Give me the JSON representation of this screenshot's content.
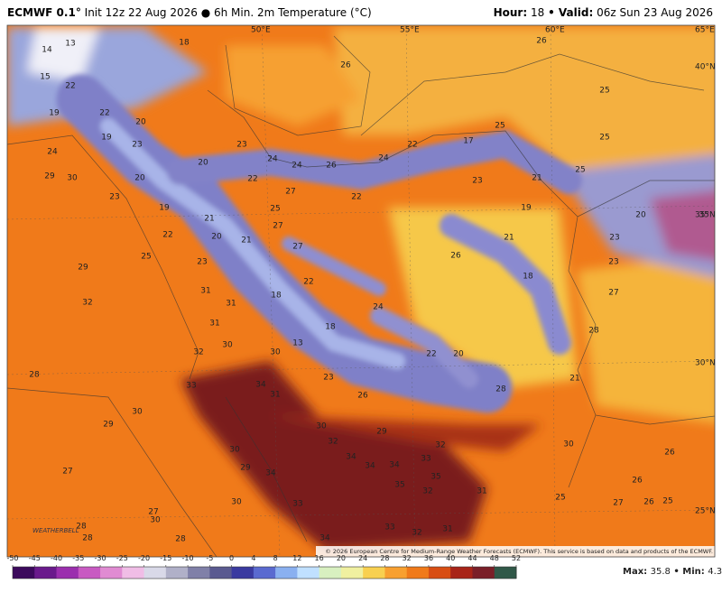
{
  "header": {
    "model": "ECMWF 0.1°",
    "init": "Init 12z 22 Aug 2026 ● 6h Min. 2m Temperature (°C)",
    "hour_label": "Hour:",
    "hour": "18",
    "valid_label": "• Valid:",
    "valid": "06z Sun 23 Aug 2026"
  },
  "map": {
    "grid_labels": [
      "50°E",
      "55°E",
      "60°E",
      "65°E",
      "40°N",
      "35°N",
      "30°N",
      "25°N"
    ],
    "temperatures": [
      14,
      15,
      13,
      18,
      22,
      19,
      22,
      20,
      19,
      23,
      24,
      29,
      30,
      20,
      20,
      22,
      23,
      19,
      21,
      20,
      22,
      21,
      25,
      23,
      29,
      32,
      31,
      31,
      31,
      18,
      22,
      27,
      27,
      25,
      27,
      22,
      24,
      26,
      23,
      24,
      24,
      22,
      17,
      25,
      25,
      23,
      25,
      21,
      19,
      20,
      35,
      23,
      23,
      21,
      26,
      18,
      27,
      28,
      24,
      18,
      13,
      32,
      30,
      30,
      23,
      26,
      22,
      20,
      28,
      21,
      33,
      34,
      31,
      30,
      29,
      32,
      32,
      30,
      26,
      28,
      30,
      29,
      30,
      29,
      34,
      34,
      34,
      34,
      33,
      35,
      35,
      32,
      31,
      26,
      25,
      27,
      26,
      25,
      27,
      30,
      33,
      27,
      30,
      28,
      28,
      28,
      34,
      33,
      32,
      31,
      26,
      25,
      26
    ],
    "credit": "© 2026 European Centre for Medium-Range Weather Forecasts (ECMWF). This service is based on data and products of the ECMWF.",
    "logo": "WEATHERBELL"
  },
  "colorbar": {
    "ticks": [
      -50,
      -45,
      -40,
      -35,
      -30,
      -25,
      -20,
      -15,
      -10,
      -5,
      0,
      4,
      8,
      12,
      16,
      20,
      24,
      28,
      32,
      36,
      40,
      44,
      48,
      52
    ],
    "colors": [
      "#3c0a5c",
      "#6a1a8c",
      "#9b2fae",
      "#c85ac2",
      "#e08bd2",
      "#f0bde6",
      "#d9d9e8",
      "#b0b0c8",
      "#8080a8",
      "#5a5a90",
      "#3a3aa0",
      "#5a6ad0",
      "#8ab0f0",
      "#c0e0ff",
      "#d8f0c0",
      "#f0f0a0",
      "#f8d050",
      "#f8a030",
      "#f07a1a",
      "#d84e14",
      "#a82418",
      "#7a1f28",
      "#305848"
    ]
  },
  "stats": {
    "max_label": "Max:",
    "max": "35.8",
    "min_label": "Min:",
    "min": "4.3"
  }
}
